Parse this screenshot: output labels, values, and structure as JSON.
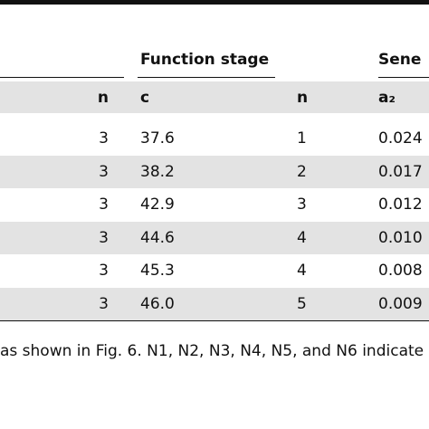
{
  "table": {
    "group_headers": [
      "Function stage",
      "Sene"
    ],
    "columns": [
      "n",
      "c",
      "n",
      "a₂"
    ],
    "rows": [
      [
        "3",
        "37.6",
        "1",
        "0.024"
      ],
      [
        "3",
        "38.2",
        "2",
        "0.017"
      ],
      [
        "3",
        "42.9",
        "3",
        "0.012"
      ],
      [
        "3",
        "44.6",
        "4",
        "0.010"
      ],
      [
        "3",
        "45.3",
        "4",
        "0.008"
      ],
      [
        "3",
        "46.0",
        "5",
        "0.009"
      ]
    ]
  },
  "footnote": "as shown in Fig. 6. N1, N2, N3, N4, N5, and N6 indicate"
}
